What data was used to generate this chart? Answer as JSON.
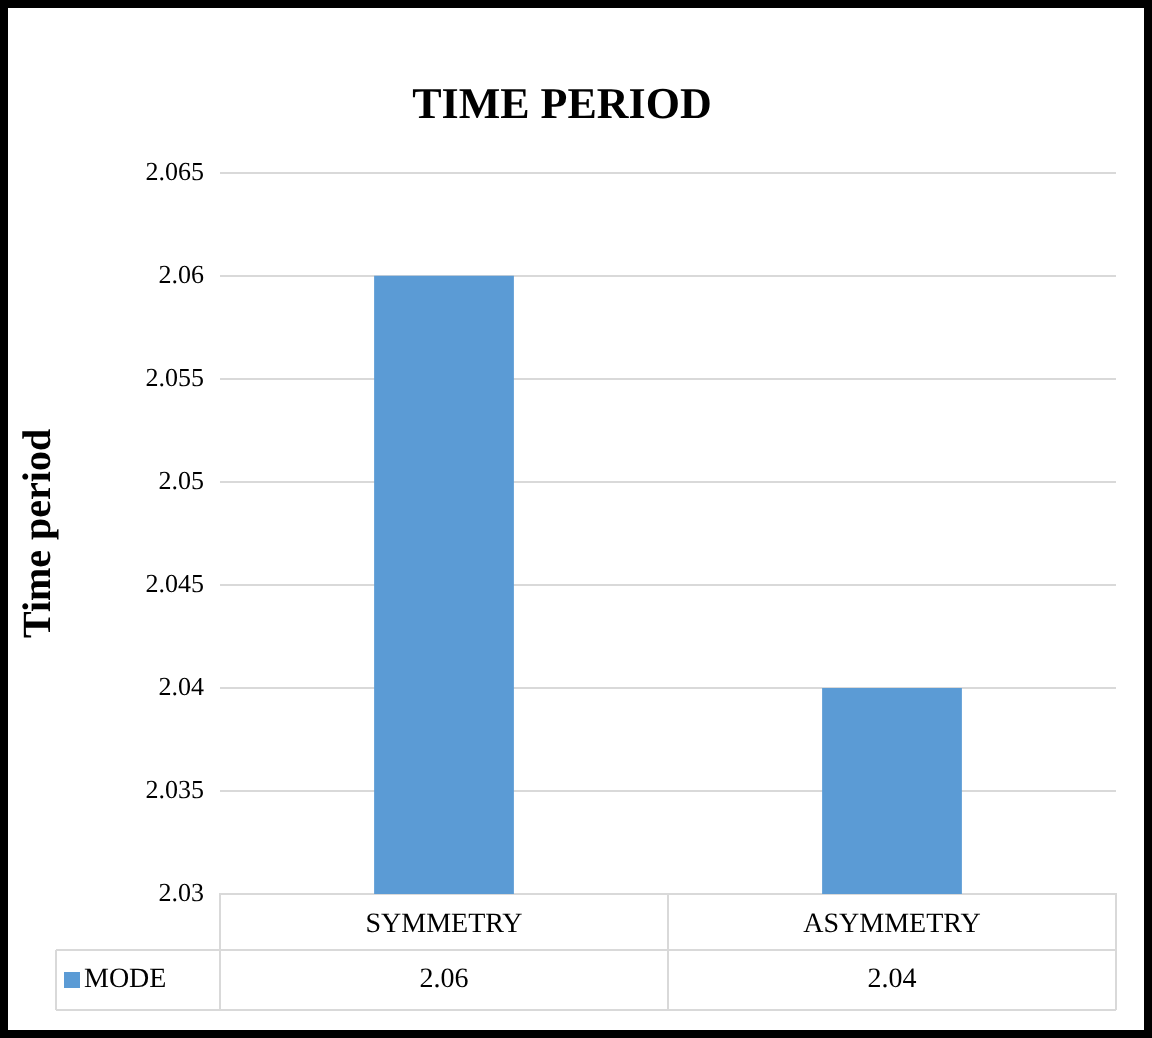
{
  "chart_data": {
    "type": "bar",
    "title": "TIME PERIOD",
    "ylabel": "Time period",
    "categories": [
      "SYMMETRY",
      "ASYMMETRY"
    ],
    "series": [
      {
        "name": "MODE",
        "color": "#5b9bd5",
        "values": [
          2.06,
          2.04
        ]
      }
    ],
    "ylim": [
      2.03,
      2.065
    ],
    "yticks": [
      2.03,
      2.035,
      2.04,
      2.045,
      2.05,
      2.055,
      2.06,
      2.065
    ],
    "grid": "y",
    "legend": "bottom",
    "data_labels": true
  }
}
